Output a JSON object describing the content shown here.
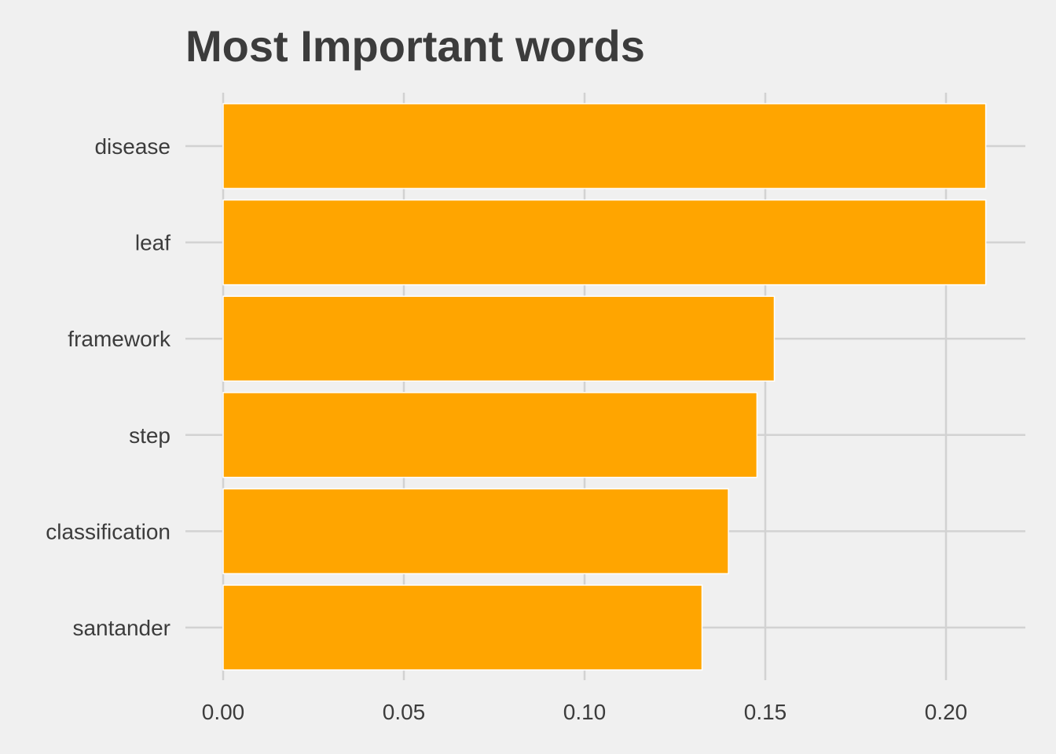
{
  "chart_data": {
    "type": "bar",
    "orientation": "horizontal",
    "title": "Most Important words",
    "xlabel": "",
    "ylabel": "",
    "categories": [
      "disease",
      "leaf",
      "framework",
      "step",
      "classification",
      "santander"
    ],
    "values": [
      0.211,
      0.211,
      0.1525,
      0.1477,
      0.1398,
      0.1325
    ],
    "x_ticks": [
      "0.00",
      "0.05",
      "0.10",
      "0.15",
      "0.20"
    ],
    "x_tick_values": [
      0,
      0.05,
      0.1,
      0.15,
      0.2
    ],
    "xlim": [
      0,
      0.2216
    ],
    "grid": true,
    "legend": "none",
    "colors": {
      "bar_fill": "#ffa500",
      "bar_stroke": "#ffffff",
      "background": "#f0f0f0",
      "grid": "#d2d2d2",
      "text": "#3c3c3c"
    }
  }
}
